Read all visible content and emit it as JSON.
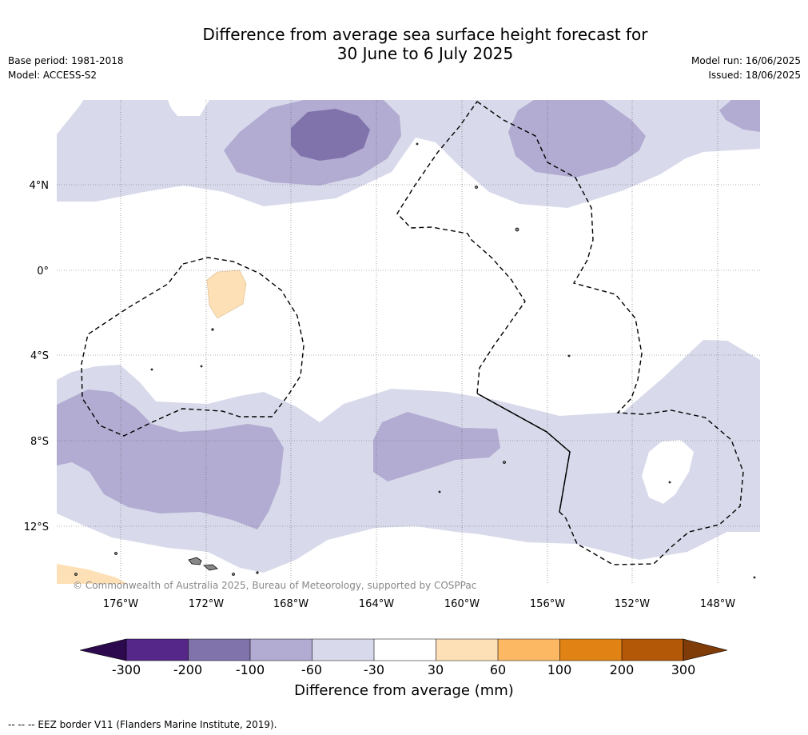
{
  "title_line1": "Difference from average sea surface height forecast for",
  "title_line2": "30 June to 6 July 2025",
  "base_period": "Base period: 1981-2018",
  "model": "Model: ACCESS-S2",
  "model_run": "Model run: 16/06/2025",
  "issued": "Issued: 18/06/2025",
  "copyright": "© Commonwealth of Australia 2025, Bureau of Meteorology, supported by COSPPac",
  "footer": "--  --  -- EEZ border V11 (Flanders Marine Institute, 2019).",
  "map": {
    "lat_labels": [
      "4°N",
      "0°",
      "4°S",
      "8°S",
      "12°S"
    ],
    "lon_labels": [
      "176°W",
      "172°W",
      "168°W",
      "164°W",
      "160°W",
      "156°W",
      "152°W",
      "148°W"
    ]
  },
  "colorbar": {
    "label": "Difference from average (mm)",
    "ticks": [
      "-300",
      "-200",
      "-100",
      "-60",
      "-30",
      "30",
      "60",
      "100",
      "200",
      "300"
    ],
    "colors": {
      "below": "#2d0a4e",
      "c1": "#542788",
      "c2": "#8073ac",
      "c3": "#b2abd2",
      "c4": "#d8daeb",
      "c5": "#ffffff",
      "c6": "#fee0b6",
      "c7": "#fdb863",
      "c8": "#e08214",
      "c9": "#b35806",
      "above": "#7f3b08"
    }
  }
}
